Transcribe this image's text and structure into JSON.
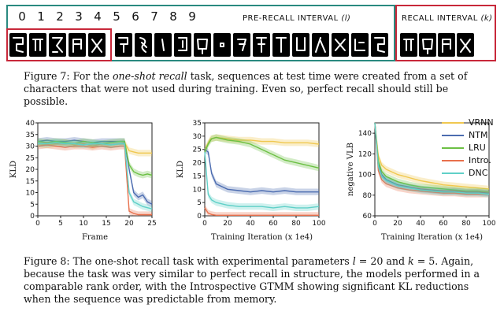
{
  "figure7": {
    "numbers": [
      "0",
      "1",
      "2",
      "3",
      "4",
      "5",
      "6",
      "7",
      "8",
      "9"
    ],
    "pre_recall_label": "PRE-RECALL INTERVAL",
    "pre_recall_var": "(l)",
    "recall_label": "RECALL INTERVAL",
    "recall_var": "(k)",
    "caption_prefix": "Figure 7: For the ",
    "caption_em": "one-shot recall",
    "caption_rest": " task, sequences at test time were created from a set of characters that were not used during training. Even so, perfect recall should still be possible."
  },
  "colors": {
    "VRNN": "#f0c850",
    "NTM": "#4c6cb0",
    "LRU": "#6cc044",
    "Intro.": "#e8704c",
    "DNC": "#60d0c8",
    "red_box": "#c8283a",
    "teal_box": "#2a8a80"
  },
  "legend": {
    "items": [
      "VRNN",
      "NTM",
      "LRU",
      "Intro.",
      "DNC"
    ]
  },
  "chart_data": [
    {
      "type": "line",
      "xlabel": "Frame",
      "ylabel": "KLD",
      "xlim": [
        0,
        25
      ],
      "ylim": [
        0,
        40
      ],
      "xticks": [
        0,
        5,
        10,
        15,
        20,
        25
      ],
      "yticks": [
        0,
        5,
        10,
        15,
        20,
        25,
        30,
        35,
        40
      ],
      "series": [
        {
          "name": "VRNN",
          "x": [
            0,
            2,
            4,
            6,
            8,
            10,
            12,
            14,
            16,
            18,
            19,
            20,
            21,
            22,
            23,
            24,
            25
          ],
          "values": [
            31,
            30.5,
            31,
            31.5,
            30.5,
            31,
            30,
            31,
            30.5,
            31,
            31.5,
            28,
            27.5,
            27,
            27,
            27,
            27
          ]
        },
        {
          "name": "NTM",
          "x": [
            0,
            2,
            4,
            6,
            8,
            10,
            12,
            14,
            16,
            18,
            19,
            20,
            21,
            22,
            23,
            24,
            25
          ],
          "values": [
            32,
            32.5,
            32,
            32,
            32.5,
            32,
            31.5,
            32,
            32,
            32,
            32,
            20,
            10,
            8,
            9,
            6,
            5
          ]
        },
        {
          "name": "LRU",
          "x": [
            0,
            2,
            4,
            6,
            8,
            10,
            12,
            14,
            16,
            18,
            19,
            20,
            21,
            22,
            23,
            24,
            25
          ],
          "values": [
            32,
            31.5,
            32,
            31.5,
            31,
            32,
            31.5,
            31,
            31.5,
            32,
            32,
            22,
            19,
            18,
            17.5,
            18,
            17.5
          ]
        },
        {
          "name": "Intro.",
          "x": [
            0,
            2,
            4,
            6,
            8,
            10,
            12,
            14,
            16,
            18,
            19,
            20,
            21,
            22,
            23,
            24,
            25
          ],
          "values": [
            30,
            30.5,
            30,
            29.5,
            30,
            30,
            29.5,
            30,
            29.5,
            30,
            30,
            2,
            1,
            0.5,
            0.5,
            0.5,
            0.5
          ]
        },
        {
          "name": "DNC",
          "x": [
            0,
            2,
            4,
            6,
            8,
            10,
            12,
            14,
            16,
            18,
            19,
            20,
            21,
            22,
            23,
            24,
            25
          ],
          "values": [
            31,
            31,
            31.5,
            31,
            31,
            30.5,
            31,
            31,
            30.5,
            31,
            31,
            10,
            6,
            5,
            4,
            3.5,
            3
          ]
        }
      ]
    },
    {
      "type": "line",
      "xlabel": "Training Iteration (x 1e4)",
      "ylabel": "KLD",
      "xlim": [
        0,
        100
      ],
      "ylim": [
        0,
        35
      ],
      "xticks": [
        0,
        20,
        40,
        60,
        80,
        100
      ],
      "yticks": [
        0,
        5,
        10,
        15,
        20,
        25,
        30,
        35
      ],
      "series": [
        {
          "name": "VRNN",
          "x": [
            0,
            5,
            10,
            20,
            30,
            40,
            50,
            60,
            70,
            80,
            90,
            100
          ],
          "values": [
            25,
            29,
            29.5,
            29,
            28.5,
            28.5,
            28,
            28,
            27.5,
            27.5,
            27.5,
            27
          ]
        },
        {
          "name": "NTM",
          "x": [
            0,
            3,
            6,
            10,
            20,
            30,
            40,
            50,
            60,
            70,
            80,
            90,
            100
          ],
          "values": [
            25,
            24,
            16,
            12,
            10,
            9.5,
            9,
            9.5,
            9,
            9.5,
            9,
            9,
            9
          ]
        },
        {
          "name": "LRU",
          "x": [
            0,
            3,
            6,
            10,
            20,
            30,
            40,
            50,
            60,
            70,
            80,
            90,
            100
          ],
          "values": [
            24,
            27,
            29,
            29.5,
            28.5,
            28,
            27,
            25,
            23,
            21,
            20,
            19,
            18
          ]
        },
        {
          "name": "Intro.",
          "x": [
            0,
            3,
            6,
            10,
            20,
            30,
            40,
            50,
            60,
            70,
            80,
            90,
            100
          ],
          "values": [
            3,
            1,
            0.5,
            0.2,
            0.2,
            0.2,
            0.2,
            0.2,
            0.2,
            0.2,
            0.2,
            0.2,
            0.2
          ]
        },
        {
          "name": "DNC",
          "x": [
            0,
            3,
            6,
            10,
            20,
            30,
            40,
            50,
            60,
            70,
            80,
            90,
            100
          ],
          "values": [
            24,
            8,
            6,
            5,
            4,
            3.5,
            3.5,
            3.5,
            3,
            3.5,
            3,
            3,
            3.5
          ]
        }
      ]
    },
    {
      "type": "line",
      "xlabel": "Training Iteration (x 1e4)",
      "ylabel": "negative VLB",
      "xlim": [
        0,
        100
      ],
      "ylim": [
        60,
        150
      ],
      "xticks": [
        0,
        20,
        40,
        60,
        80,
        100
      ],
      "yticks": [
        60,
        80,
        100,
        120,
        140
      ],
      "series": [
        {
          "name": "VRNN",
          "x": [
            0,
            3,
            6,
            10,
            20,
            30,
            40,
            50,
            60,
            70,
            80,
            90,
            100
          ],
          "values": [
            150,
            118,
            109,
            105,
            100,
            97,
            94,
            92,
            90,
            89,
            88,
            87,
            86
          ]
        },
        {
          "name": "NTM",
          "x": [
            0,
            3,
            6,
            10,
            20,
            30,
            40,
            50,
            60,
            70,
            80,
            90,
            100
          ],
          "values": [
            150,
            110,
            100,
            95,
            90,
            88,
            86,
            85,
            84,
            84,
            83,
            83,
            82
          ]
        },
        {
          "name": "LRU",
          "x": [
            0,
            3,
            6,
            10,
            20,
            30,
            40,
            50,
            60,
            70,
            80,
            90,
            100
          ],
          "values": [
            150,
            113,
            103,
            98,
            93,
            90,
            88,
            87,
            86,
            85,
            84,
            84,
            83
          ]
        },
        {
          "name": "Intro.",
          "x": [
            0,
            3,
            6,
            10,
            20,
            30,
            40,
            50,
            60,
            70,
            80,
            90,
            100
          ],
          "values": [
            150,
            104,
            95,
            91,
            87,
            85,
            84,
            83,
            82,
            82,
            81,
            81,
            81
          ]
        },
        {
          "name": "DNC",
          "x": [
            0,
            3,
            6,
            10,
            20,
            30,
            40,
            50,
            60,
            70,
            80,
            90,
            100
          ],
          "values": [
            150,
            108,
            98,
            94,
            89,
            87,
            85,
            84,
            83,
            83,
            82,
            82,
            81
          ]
        }
      ]
    }
  ],
  "figure8": {
    "caption_line1": "Figure 8: The one-shot recall task with experimental parameters ",
    "caption_l": "l",
    "caption_eq1": " = 20 and ",
    "caption_k": "k",
    "caption_eq2": " = 5. Again, because the task was very similar to perfect recall in structure, the models performed in a comparable rank order, with the Introspective GTMM showing significant KL reductions when the sequence was predictable from memory."
  }
}
